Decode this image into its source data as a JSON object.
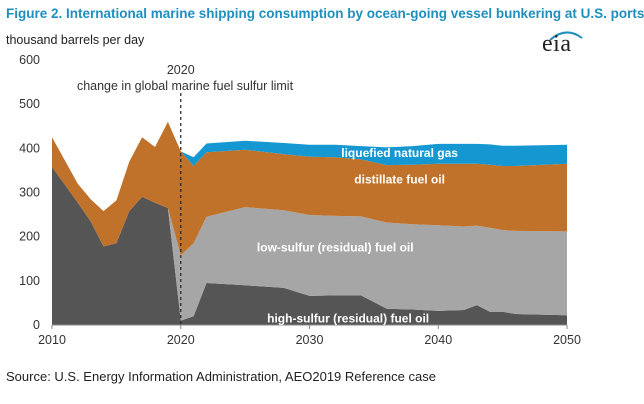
{
  "title": "Figure 2. International marine shipping consumption by ocean-going vessel bunkering at U.S. ports",
  "source": "Source: U.S. Energy Information Administration, AEO2019 Reference case",
  "logo_text": "eia",
  "chart_data": {
    "type": "area",
    "stacked": true,
    "title": "Figure 2. International marine shipping consumption by ocean-going vessel bunkering at U.S. ports",
    "ylabel": "thousand barrels per day",
    "xlabel": "",
    "xlim": [
      2010,
      2050
    ],
    "ylim": [
      0,
      600
    ],
    "xticks": [
      2010,
      2020,
      2030,
      2040,
      2050
    ],
    "yticks": [
      0,
      100,
      200,
      300,
      400,
      500,
      600
    ],
    "grid": false,
    "legend": "none",
    "x": [
      2010,
      2012,
      2013,
      2014,
      2015,
      2016,
      2017,
      2018,
      2019,
      2020,
      2021,
      2022,
      2025,
      2028,
      2030,
      2032,
      2034,
      2036,
      2038,
      2040,
      2042,
      2043,
      2044,
      2045,
      2046,
      2050
    ],
    "series": [
      {
        "name": "high-sulfur (residual) fuel oil",
        "color": "#555555",
        "values": [
          358,
          277,
          235,
          178,
          185,
          258,
          290,
          277,
          265,
          10,
          20,
          95,
          90,
          84,
          66,
          67,
          67,
          37,
          35,
          32,
          34,
          45,
          30,
          30,
          25,
          22
        ]
      },
      {
        "name": "low-sulfur (residual) fuel oil",
        "color": "#a6a6a6",
        "values": [
          0,
          0,
          0,
          0,
          0,
          0,
          0,
          0,
          0,
          148,
          165,
          150,
          177,
          176,
          183,
          180,
          179,
          195,
          193,
          194,
          189,
          180,
          190,
          185,
          188,
          190
        ]
      },
      {
        "name": "distillate fuel oil",
        "color": "#c1722a",
        "values": [
          67,
          43,
          50,
          80,
          97,
          112,
          135,
          126,
          195,
          235,
          175,
          146,
          130,
          127,
          132,
          133,
          129,
          130,
          135,
          139,
          142,
          140,
          143,
          145,
          147,
          153
        ]
      },
      {
        "name": "liquefied natural gas",
        "color": "#1597d1",
        "values": [
          0,
          0,
          0,
          0,
          0,
          0,
          0,
          0,
          0,
          0,
          20,
          20,
          20,
          25,
          27,
          28,
          30,
          40,
          42,
          45,
          45,
          45,
          46,
          46,
          46,
          43
        ]
      }
    ],
    "annotation": {
      "x": 2020,
      "line_style": "dashed",
      "label_year": "2020",
      "label": "change in global marine fuel sulfur limit"
    },
    "labels": [
      {
        "series": "liquefied natural gas",
        "text": "liquefied natural gas",
        "x": 2037,
        "y": 390,
        "color": "#ffffff"
      },
      {
        "series": "distillate fuel oil",
        "text": "distillate fuel oil",
        "x": 2037,
        "y": 330,
        "color": "#ffffff"
      },
      {
        "series": "low-sulfur (residual) fuel oil",
        "text": "low-sulfur (residual) fuel oil",
        "x": 2032,
        "y": 175,
        "color": "#ffffff"
      },
      {
        "series": "high-sulfur (residual) fuel oil",
        "text": "high-sulfur (residual) fuel oil",
        "x": 2033,
        "y": 15,
        "color": "#ffffff"
      }
    ]
  }
}
